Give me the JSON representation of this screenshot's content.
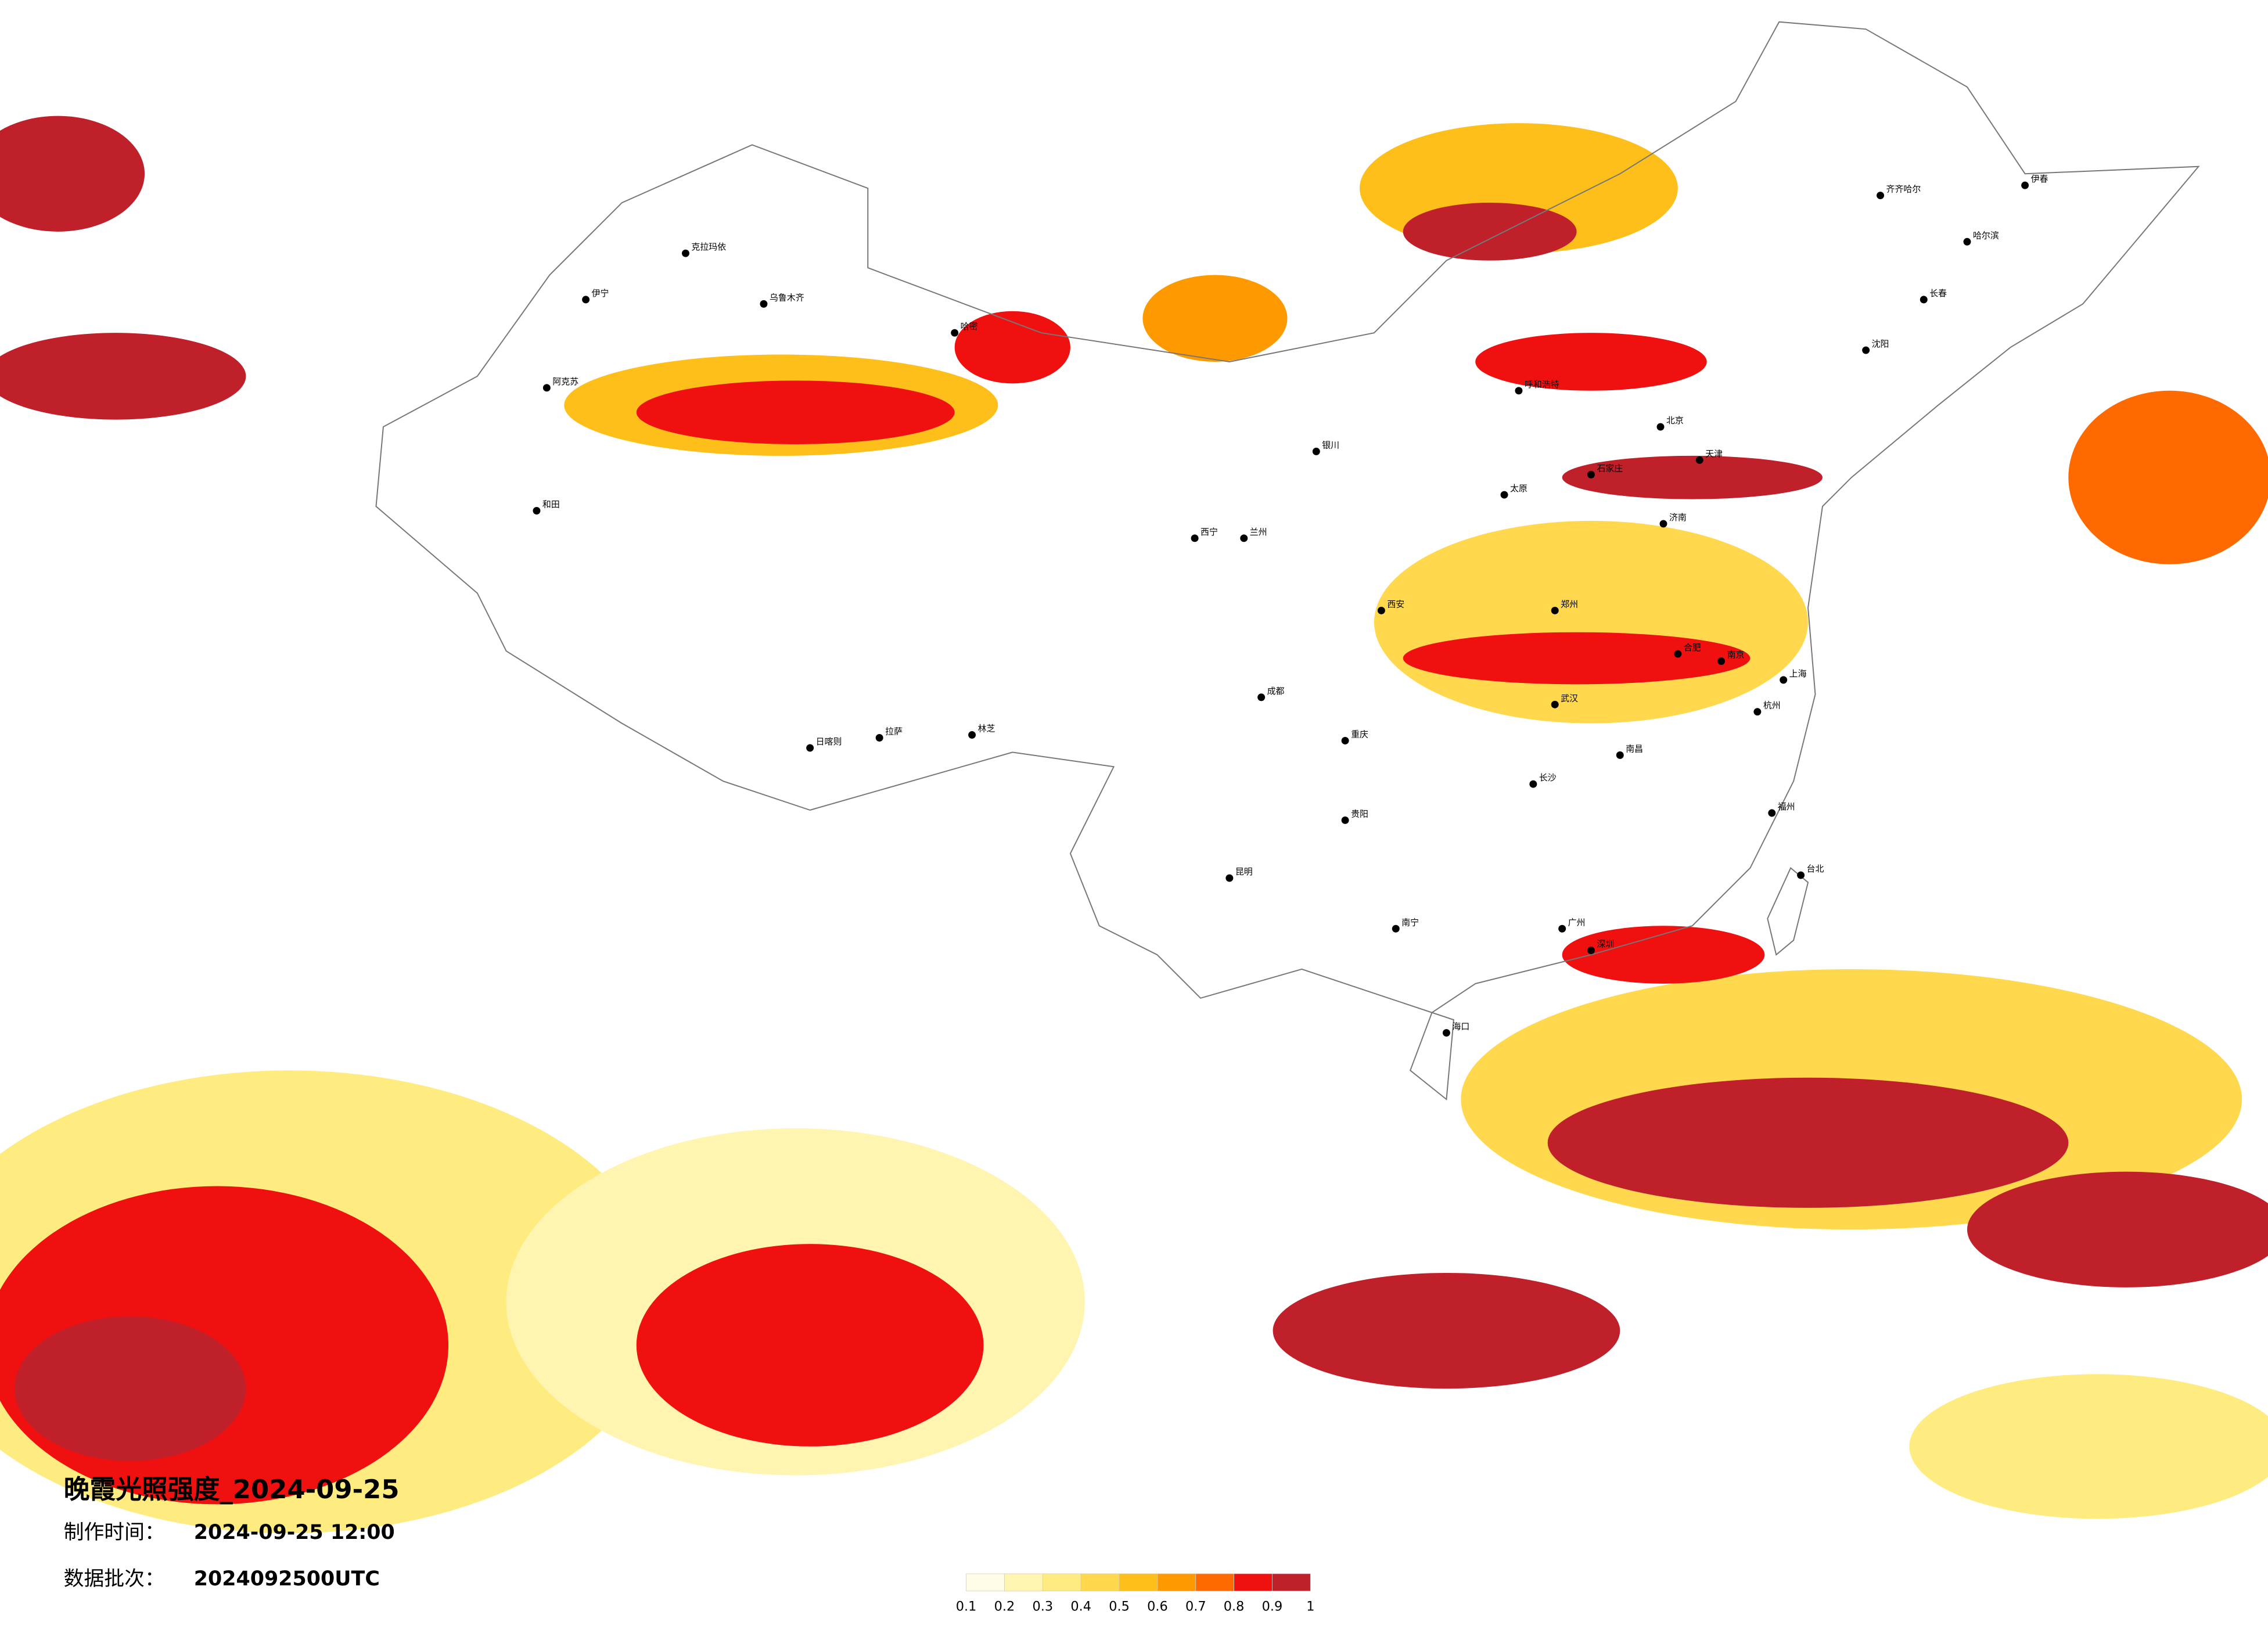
{
  "title": "晚霞光照强度_2024-09-25",
  "production_time": {
    "label": "制作时间：",
    "value": "2024-09-25 12:00"
  },
  "batch": {
    "label": "数据批次：",
    "value": "2024092500UTC"
  },
  "colorbar": {
    "ticks": [
      0.1,
      0.2,
      0.3,
      0.4,
      0.5,
      0.6,
      0.7,
      0.8,
      0.9,
      1
    ],
    "colors": [
      "#fffbe6",
      "#fff5b0",
      "#ffec80",
      "#ffd84d",
      "#ffbf1a",
      "#ff9900",
      "#ff6a00",
      "#f01010",
      "#c0202a"
    ]
  },
  "cities": [
    "克拉玛依",
    "乌鲁木齐",
    "伊宁",
    "阿克苏",
    "和田",
    "哈密",
    "拉萨",
    "日喀则",
    "林芝",
    "西宁",
    "兰州",
    "银川",
    "呼和浩特",
    "北京",
    "天津",
    "石家庄",
    "太原",
    "济南",
    "郑州",
    "西安",
    "成都",
    "重庆",
    "武汉",
    "合肥",
    "南京",
    "上海",
    "杭州",
    "南昌",
    "长沙",
    "福州",
    "台北",
    "广州",
    "深圳",
    "南宁",
    "贵阳",
    "昆明",
    "海口",
    "沈阳",
    "长春",
    "哈尔滨",
    "齐齐哈尔",
    "伊春"
  ]
}
